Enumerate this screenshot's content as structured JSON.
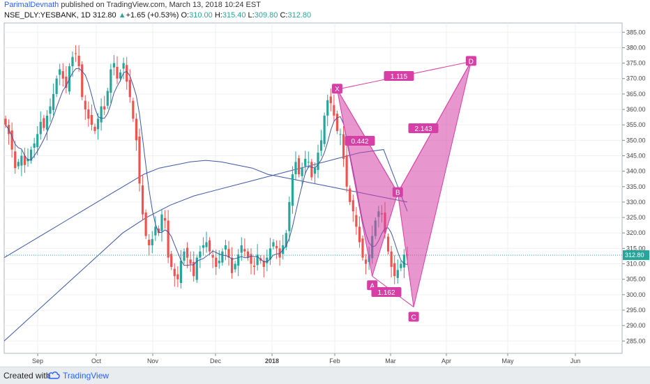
{
  "header": {
    "author": "ParimalDevnath",
    "published": "published on TradingView.com, March 13, 2018 10:24 EST",
    "symbol": "NSE_DLY:YESBANK, 1D",
    "last": "312.80",
    "arrow": "▲",
    "change": "+1.65 (+0.53%)",
    "o_label": "O:",
    "o": "310.00",
    "h_label": "H:",
    "h": "315.40",
    "l_label": "L:",
    "l": "309.80",
    "c_label": "C:",
    "c": "312.80"
  },
  "footer": {
    "created": "Created with",
    "brand": "TradingView"
  },
  "colors": {
    "up": "#26a69a",
    "down": "#ef5350",
    "pattern": "#d63fa6",
    "ma": "#3d56a6",
    "price_line": "#26a69a",
    "author": "#2962ff"
  },
  "chart_data": {
    "type": "candlestick",
    "y_range": [
      281,
      388
    ],
    "y_ticks": [
      "285.00",
      "290.00",
      "295.00",
      "300.00",
      "305.00",
      "310.00",
      "315.00",
      "320.00",
      "325.00",
      "330.00",
      "335.00",
      "340.00",
      "345.00",
      "350.00",
      "355.00",
      "360.00",
      "365.00",
      "370.00",
      "375.00",
      "380.00",
      "385.00"
    ],
    "x_labels": [
      "Sep",
      "Oct",
      "Nov",
      "Dec",
      "2018",
      "Feb",
      "Mar",
      "Apr",
      "May",
      "Jun"
    ],
    "last_price_label": "312.80",
    "closes": [
      355,
      352,
      347,
      341,
      343,
      345,
      342,
      344,
      347,
      349,
      352,
      356,
      354,
      358,
      361,
      365,
      370,
      373,
      370,
      367,
      374,
      377,
      378,
      374,
      364,
      360,
      357,
      355,
      353,
      357,
      361,
      360,
      366,
      373,
      375,
      370,
      372,
      375,
      369,
      364,
      357,
      350,
      336,
      326,
      319,
      316,
      318,
      322,
      320,
      326,
      324,
      312,
      309,
      306,
      305,
      311,
      314,
      312,
      310,
      306,
      312,
      314,
      316,
      317,
      314,
      312,
      309,
      311,
      314,
      316,
      312,
      307,
      310,
      313,
      316,
      314,
      312,
      310,
      309,
      313,
      311,
      309,
      312,
      315,
      317,
      315,
      312,
      316,
      320,
      330,
      339,
      343,
      339,
      341,
      344,
      343,
      338,
      341,
      346,
      350,
      358,
      363,
      362,
      358,
      353,
      352,
      344,
      335,
      330,
      327,
      322,
      317,
      312,
      310,
      313,
      319,
      324,
      327,
      326,
      320,
      314,
      309,
      306,
      308,
      310,
      313,
      312.8
    ],
    "moving_average_1": [
      312,
      315,
      318,
      321,
      324,
      327,
      330,
      333,
      336,
      339,
      341,
      342,
      343,
      343.5,
      343,
      342,
      341,
      339,
      338,
      337,
      336,
      335,
      334,
      333,
      332,
      331,
      330
    ],
    "moving_average_2": [
      285,
      292,
      299,
      306,
      313,
      320,
      325,
      329,
      332,
      334,
      336,
      338,
      340,
      342,
      344,
      346,
      347,
      327
    ],
    "pattern": {
      "points": [
        {
          "label": "X",
          "date_index": 104,
          "price": 366.5
        },
        {
          "label": "A",
          "date_index": 115,
          "price": 306
        },
        {
          "label": "B",
          "date_index": 123,
          "price": 333
        },
        {
          "label": "C",
          "date_index": 128,
          "price": 296
        },
        {
          "label": "D",
          "date_index": 146,
          "price": 375.5
        }
      ],
      "ratios": [
        "0.442",
        "1.162",
        "2.143",
        "1.115"
      ]
    }
  }
}
